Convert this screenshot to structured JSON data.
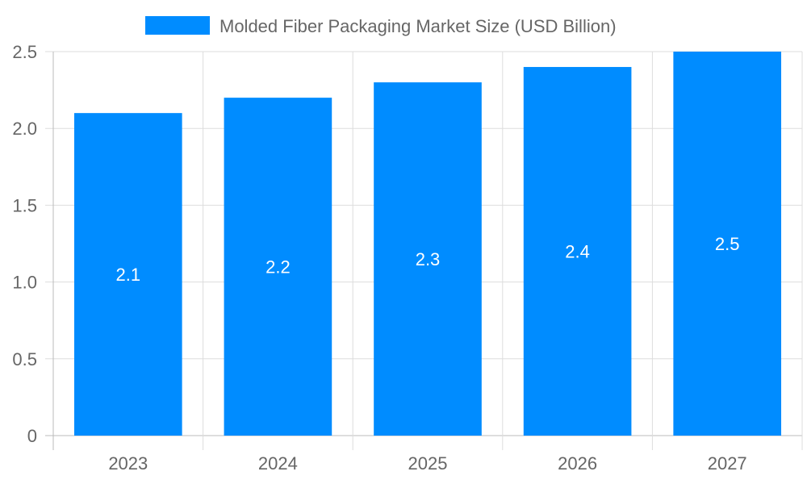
{
  "chart_data": {
    "type": "bar",
    "title": "",
    "xlabel": "",
    "ylabel": "",
    "categories": [
      "2023",
      "2024",
      "2025",
      "2026",
      "2027"
    ],
    "series": [
      {
        "name": "Molded Fiber Packaging Market Size (USD Billion)",
        "values": [
          2.1,
          2.2,
          2.3,
          2.4,
          2.5
        ],
        "color": "#008CFF"
      }
    ],
    "data_labels": [
      "2.1",
      "2.2",
      "2.3",
      "2.4",
      "2.5"
    ],
    "ylim": [
      0,
      2.5
    ],
    "yticks": [
      "0",
      "0.5",
      "1.0",
      "1.5",
      "2.0",
      "2.5"
    ],
    "grid": true,
    "legend_position": "top"
  }
}
